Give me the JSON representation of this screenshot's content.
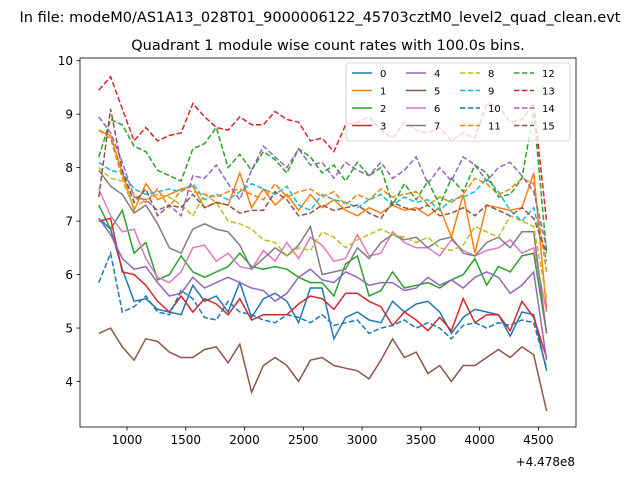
{
  "figure": {
    "suptitle": "In file: modeM0/AS1A13_028T01_9000006122_45703cztM0_level2_quad_clean.evt",
    "title": "Quadrant 1 module wise count rates with 100.0s bins."
  },
  "chart_data": {
    "type": "line",
    "title": "Quadrant 1 module wise count rates with 100.0s bins.",
    "xlabel": "",
    "ylabel": "",
    "x_offset_label": "+4.478e8",
    "xlim": [
      600,
      4820
    ],
    "ylim": [
      3.15,
      10.05
    ],
    "xticks": [
      1000,
      1500,
      2000,
      2500,
      3000,
      3500,
      4000,
      4500
    ],
    "yticks": [
      4,
      5,
      6,
      7,
      8,
      9,
      10
    ],
    "grid": false,
    "legend": {
      "position": "top-right",
      "ncol": 4
    },
    "x": [
      760,
      860,
      960,
      1060,
      1160,
      1260,
      1360,
      1460,
      1560,
      1660,
      1760,
      1860,
      1960,
      2060,
      2160,
      2260,
      2360,
      2460,
      2560,
      2660,
      2760,
      2860,
      2960,
      3060,
      3160,
      3260,
      3360,
      3460,
      3560,
      3660,
      3760,
      3860,
      3960,
      4060,
      4160,
      4260,
      4360,
      4460,
      4570
    ],
    "series": [
      {
        "name": "0",
        "color": "#1f77b4",
        "dash": "solid",
        "values": [
          7.05,
          6.85,
          6.1,
          5.5,
          5.55,
          5.35,
          5.3,
          5.25,
          5.8,
          5.5,
          5.6,
          5.3,
          5.85,
          5.2,
          5.55,
          5.65,
          5.5,
          5.1,
          5.75,
          5.75,
          4.8,
          5.2,
          5.3,
          5.15,
          5.1,
          5.5,
          5.3,
          5.45,
          5.5,
          5.3,
          4.9,
          5.2,
          5.35,
          5.3,
          5.25,
          4.85,
          5.3,
          5.25,
          4.2
        ]
      },
      {
        "name": "1",
        "color": "#ff7f0e",
        "dash": "solid",
        "values": [
          8.7,
          8.6,
          7.9,
          7.2,
          7.7,
          7.4,
          7.5,
          7.6,
          7.65,
          7.25,
          7.35,
          7.3,
          7.9,
          7.25,
          7.6,
          7.3,
          7.5,
          7.2,
          7.5,
          7.25,
          7.4,
          7.2,
          7.1,
          7.25,
          7.15,
          7.3,
          7.2,
          7.25,
          7.1,
          7.25,
          6.7,
          7.5,
          6.4,
          7.3,
          7.25,
          7.2,
          7.25,
          7.9,
          5.35
        ]
      },
      {
        "name": "2",
        "color": "#2ca02c",
        "dash": "solid",
        "values": [
          7.3,
          6.85,
          7.2,
          6.4,
          6.6,
          5.9,
          6.0,
          6.35,
          6.05,
          5.95,
          6.05,
          6.15,
          6.4,
          6.15,
          6.1,
          6.15,
          6.1,
          5.95,
          5.85,
          5.85,
          5.6,
          6.2,
          6.35,
          5.6,
          5.7,
          6.05,
          5.75,
          5.8,
          5.85,
          5.75,
          5.9,
          6.0,
          6.3,
          5.8,
          6.15,
          6.05,
          6.35,
          6.4,
          4.9
        ]
      },
      {
        "name": "3",
        "color": "#d62728",
        "dash": "solid",
        "values": [
          7.0,
          7.05,
          6.05,
          6.0,
          5.8,
          5.5,
          5.3,
          5.6,
          5.3,
          5.55,
          5.45,
          5.25,
          5.55,
          5.15,
          5.25,
          5.25,
          5.25,
          5.45,
          5.6,
          5.55,
          5.35,
          5.65,
          5.65,
          5.5,
          5.4,
          5.05,
          5.3,
          5.15,
          4.95,
          5.2,
          4.95,
          5.55,
          5.1,
          5.25,
          5.25,
          4.95,
          5.5,
          5.2,
          4.45
        ]
      },
      {
        "name": "4",
        "color": "#9467bd",
        "dash": "solid",
        "values": [
          7.05,
          6.75,
          6.3,
          6.1,
          6.15,
          5.85,
          5.6,
          5.65,
          5.95,
          5.75,
          5.85,
          5.95,
          5.85,
          5.75,
          5.7,
          5.5,
          5.65,
          5.95,
          6.1,
          5.9,
          5.85,
          6.05,
          5.95,
          5.8,
          5.85,
          5.85,
          5.7,
          5.75,
          5.95,
          5.8,
          5.9,
          5.75,
          5.95,
          6.05,
          5.95,
          5.65,
          5.8,
          6.05,
          4.4
        ]
      },
      {
        "name": "5",
        "color": "#8c564b",
        "dash": "solid",
        "values": [
          4.9,
          5.0,
          4.65,
          4.4,
          4.8,
          4.75,
          4.55,
          4.45,
          4.45,
          4.6,
          4.65,
          4.35,
          4.7,
          3.8,
          4.3,
          4.45,
          4.3,
          4.0,
          4.4,
          4.45,
          4.3,
          4.25,
          4.2,
          4.05,
          4.4,
          4.8,
          4.45,
          4.55,
          4.15,
          4.3,
          4.0,
          4.3,
          4.3,
          4.45,
          4.6,
          4.45,
          4.65,
          4.5,
          3.45
        ]
      },
      {
        "name": "6",
        "color": "#e377c2",
        "dash": "solid",
        "values": [
          7.6,
          7.1,
          6.8,
          6.85,
          6.3,
          5.95,
          5.85,
          6.05,
          6.5,
          6.55,
          6.25,
          6.4,
          6.15,
          6.1,
          6.45,
          6.25,
          6.6,
          6.3,
          6.7,
          6.55,
          6.25,
          6.3,
          6.75,
          6.35,
          6.4,
          6.8,
          6.6,
          6.5,
          6.5,
          6.35,
          6.65,
          6.45,
          6.35,
          6.45,
          6.5,
          6.65,
          6.4,
          6.5,
          5.3
        ]
      },
      {
        "name": "7",
        "color": "#7f7f7f",
        "dash": "solid",
        "values": [
          7.95,
          7.65,
          7.5,
          7.15,
          7.3,
          6.95,
          6.5,
          6.4,
          6.85,
          6.95,
          6.85,
          6.8,
          6.55,
          6.1,
          6.3,
          6.5,
          6.35,
          6.55,
          6.9,
          6.0,
          6.05,
          6.1,
          6.5,
          6.3,
          6.6,
          6.75,
          6.65,
          6.7,
          6.5,
          6.65,
          6.7,
          6.4,
          6.35,
          6.6,
          6.7,
          6.5,
          6.8,
          6.8,
          4.9
        ]
      },
      {
        "name": "8",
        "color": "#bcbd22",
        "dash": "dashed",
        "values": [
          8.0,
          7.8,
          7.75,
          7.25,
          7.4,
          7.5,
          7.45,
          7.3,
          7.1,
          7.5,
          7.35,
          7.0,
          6.95,
          6.85,
          6.65,
          6.6,
          6.35,
          6.5,
          6.45,
          6.8,
          6.7,
          6.5,
          6.65,
          6.75,
          6.85,
          6.75,
          6.7,
          6.6,
          6.7,
          6.5,
          6.45,
          6.55,
          6.9,
          6.8,
          6.7,
          7.1,
          7.0,
          6.9,
          5.55
        ]
      },
      {
        "name": "9",
        "color": "#17becf",
        "dash": "dashed",
        "values": [
          8.1,
          7.95,
          7.9,
          7.6,
          7.5,
          7.55,
          7.6,
          7.55,
          7.7,
          7.4,
          7.5,
          7.4,
          7.55,
          7.7,
          7.6,
          7.5,
          7.65,
          7.3,
          7.2,
          7.5,
          7.4,
          7.35,
          7.25,
          7.4,
          7.5,
          7.3,
          7.45,
          7.35,
          7.4,
          7.2,
          7.4,
          7.45,
          7.55,
          7.8,
          7.55,
          7.2,
          7.0,
          7.25,
          6.25
        ]
      },
      {
        "name": "10",
        "color": "#1f77b4",
        "dash": "dashed",
        "values": [
          5.85,
          6.4,
          5.3,
          5.4,
          5.6,
          5.3,
          5.25,
          5.7,
          5.55,
          5.2,
          5.15,
          5.5,
          5.3,
          5.25,
          5.15,
          5.1,
          5.25,
          5.2,
          5.1,
          5.25,
          5.05,
          5.1,
          5.15,
          4.9,
          5.0,
          5.05,
          5.15,
          5.0,
          5.1,
          5.0,
          4.8,
          5.05,
          5.1,
          5.0,
          5.1,
          5.05,
          5.15,
          5.1,
          4.25
        ]
      },
      {
        "name": "11",
        "color": "#ff7f0e",
        "dash": "dashed",
        "values": [
          8.7,
          8.55,
          7.8,
          7.5,
          7.35,
          7.6,
          7.25,
          7.6,
          7.55,
          7.5,
          7.45,
          7.55,
          7.6,
          7.5,
          7.4,
          7.7,
          7.45,
          7.55,
          7.6,
          7.45,
          7.55,
          7.3,
          7.5,
          7.4,
          7.6,
          7.45,
          7.5,
          7.55,
          7.3,
          7.45,
          7.35,
          7.5,
          7.8,
          7.7,
          7.5,
          7.6,
          7.8,
          7.7,
          6.05
        ]
      },
      {
        "name": "12",
        "color": "#2ca02c",
        "dash": "dashed",
        "values": [
          8.2,
          8.9,
          8.8,
          8.4,
          8.3,
          7.95,
          7.85,
          7.75,
          8.35,
          8.45,
          8.75,
          8.0,
          8.25,
          7.95,
          8.3,
          8.15,
          7.9,
          8.35,
          8.2,
          7.9,
          8.05,
          7.75,
          8.1,
          7.85,
          8.0,
          7.3,
          7.7,
          7.4,
          7.75,
          7.3,
          7.8,
          7.55,
          8.05,
          7.9,
          7.45,
          7.5,
          7.8,
          9.05,
          6.4
        ]
      },
      {
        "name": "13",
        "color": "#d62728",
        "dash": "dashed",
        "values": [
          9.45,
          9.7,
          9.1,
          8.5,
          8.75,
          8.5,
          8.6,
          8.65,
          9.2,
          8.95,
          8.75,
          8.7,
          8.95,
          8.8,
          8.8,
          9.05,
          8.9,
          8.85,
          8.5,
          8.55,
          8.3,
          8.8,
          8.85,
          8.95,
          8.7,
          8.55,
          8.85,
          8.7,
          8.65,
          8.75,
          8.5,
          8.65,
          8.55,
          9.2,
          9.15,
          8.85,
          8.9,
          9.2,
          7.0
        ]
      },
      {
        "name": "14",
        "color": "#9467bd",
        "dash": "dashed",
        "values": [
          8.95,
          8.65,
          8.1,
          7.45,
          7.4,
          7.2,
          7.3,
          7.1,
          7.85,
          7.8,
          8.05,
          7.7,
          7.4,
          7.95,
          8.4,
          8.2,
          8.0,
          8.35,
          8.05,
          8.1,
          7.8,
          8.1,
          7.95,
          7.85,
          8.1,
          7.8,
          7.95,
          8.2,
          7.7,
          8.0,
          7.75,
          8.2,
          8.05,
          7.75,
          8.0,
          8.1,
          7.85,
          7.55,
          6.5
        ]
      },
      {
        "name": "15",
        "color": "#8c564b",
        "dash": "dashed",
        "values": [
          7.45,
          9.1,
          7.95,
          7.35,
          7.6,
          7.1,
          7.3,
          7.25,
          7.5,
          7.25,
          7.35,
          7.3,
          7.15,
          7.2,
          7.2,
          7.55,
          7.4,
          7.1,
          7.15,
          7.3,
          7.2,
          7.25,
          7.3,
          7.15,
          7.05,
          7.35,
          7.25,
          7.2,
          7.3,
          7.1,
          7.15,
          7.25,
          7.1,
          7.3,
          7.2,
          7.1,
          7.25,
          7.05,
          6.4
        ]
      }
    ]
  }
}
